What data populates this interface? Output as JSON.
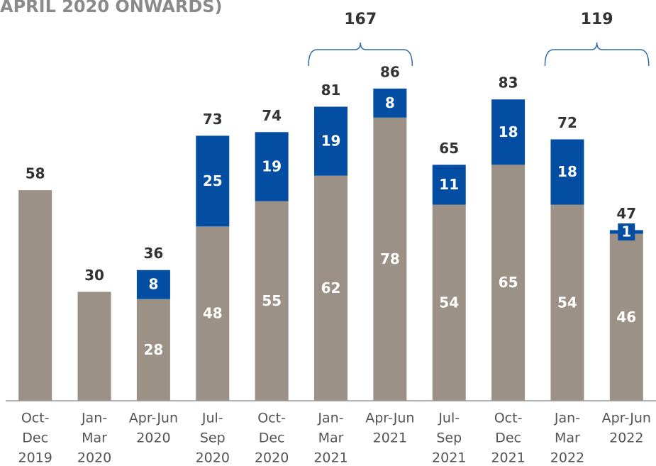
{
  "chart_data": {
    "type": "stacked_bar",
    "title": "APRIL 2020 ONWARDS)",
    "categories": [
      [
        "Oct-",
        "Dec",
        "2019"
      ],
      [
        "Jan-",
        "Mar",
        "2020"
      ],
      [
        "Apr-Jun",
        "2020"
      ],
      [
        "Jul-",
        "Sep",
        "2020"
      ],
      [
        "Oct-",
        "Dec",
        "2020"
      ],
      [
        "Jan-",
        "Mar",
        "2021"
      ],
      [
        "Apr-Jun",
        "2021"
      ],
      [
        "Jul-",
        "Sep",
        "2021"
      ],
      [
        "Oct-",
        "Dec",
        "2021"
      ],
      [
        "Jan-",
        "Mar",
        "2022"
      ],
      [
        "Apr-Jun",
        "2022"
      ]
    ],
    "series": [
      {
        "color": "#9b9186",
        "values": [
          58,
          30,
          28,
          48,
          55,
          62,
          78,
          54,
          65,
          54,
          46
        ]
      },
      {
        "color": "#034ea2",
        "values": [
          null,
          null,
          8,
          25,
          19,
          19,
          8,
          11,
          18,
          18,
          1
        ]
      }
    ],
    "totals": [
      58,
      30,
      36,
      73,
      74,
      81,
      86,
      65,
      83,
      72,
      47
    ],
    "annotations": [
      {
        "value": 167,
        "start": 5,
        "end": 6
      },
      {
        "value": 119,
        "start": 9,
        "end": 10
      }
    ],
    "ylim": [
      0,
      110
    ]
  }
}
